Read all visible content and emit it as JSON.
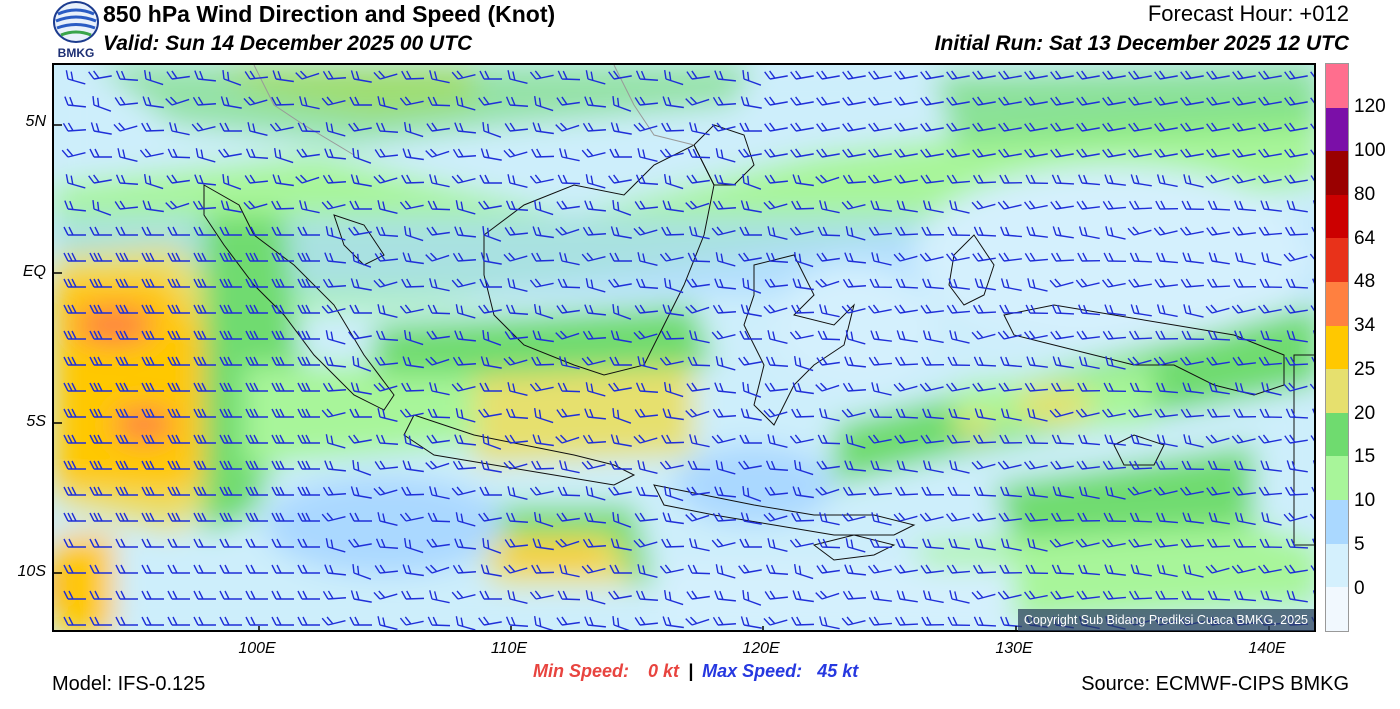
{
  "header": {
    "title": "850 hPa Wind Direction and Speed (Knot)",
    "valid": "Valid: Sun 14 December 2025 00 UTC",
    "forecast_hour": "Forecast Hour: +012",
    "initial_run": "Initial Run: Sat 13 December 2025 12 UTC",
    "logo_text": "BMKG"
  },
  "map": {
    "lat_labels": [
      "5N",
      "EQ",
      "5S",
      "10S"
    ],
    "lon_labels": [
      "100E",
      "110E",
      "120E",
      "130E",
      "140E"
    ],
    "copyright": "Copyright Sub Bidang Prediksi Cuaca BMKG, 2025"
  },
  "colorbar": {
    "labels": [
      "120",
      "100",
      "80",
      "64",
      "48",
      "34",
      "25",
      "20",
      "15",
      "10",
      "5",
      "0"
    ],
    "colors": [
      "#ff6e8e",
      "#7b0fa8",
      "#9a0000",
      "#cc0000",
      "#e8321a",
      "#ff8040",
      "#ffc800",
      "#e6e06e",
      "#6fdb6f",
      "#a8f59a",
      "#aad8ff",
      "#d4f0fd",
      "#f1f8fe"
    ]
  },
  "footer": {
    "model": "Model: IFS-0.125",
    "source": "Source: ECMWF-CIPS BMKG",
    "min_speed_label": "Min Speed:",
    "min_speed_value": "0 kt",
    "separator": "|",
    "max_speed_label": "Max Speed:",
    "max_speed_value": "45 kt"
  }
}
